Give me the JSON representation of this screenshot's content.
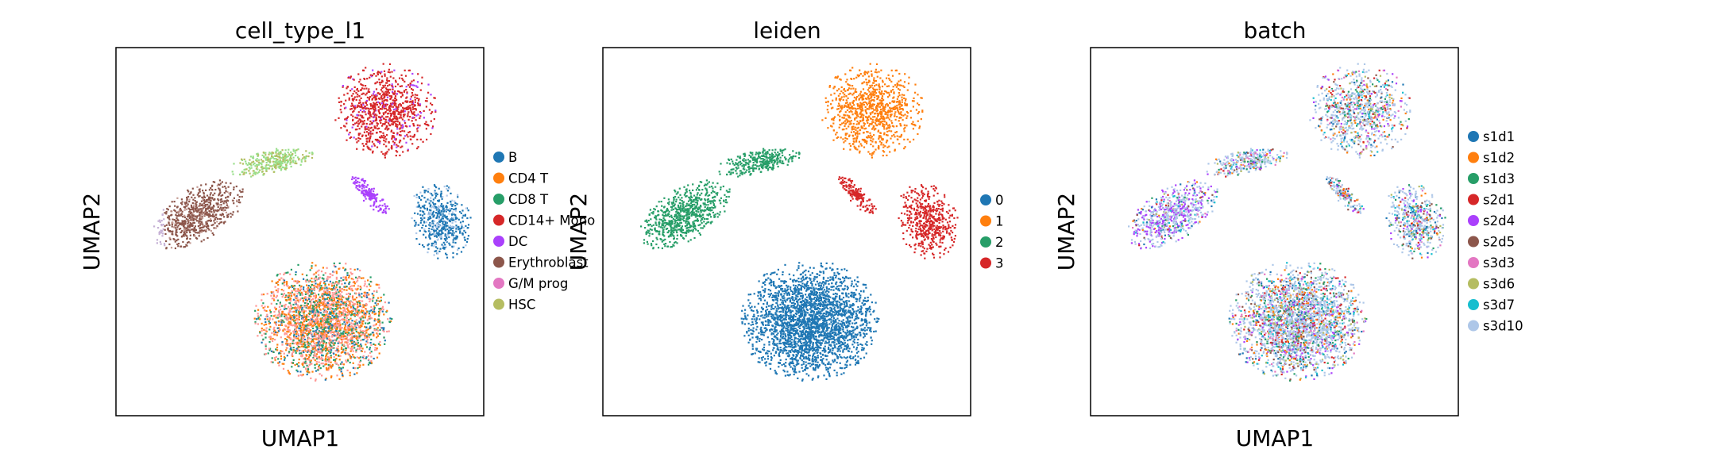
{
  "chart_data": [
    {
      "type": "scatter",
      "title": "cell_type_l1",
      "xlabel": "UMAP1",
      "ylabel": "UMAP2",
      "grid": false,
      "legend_position": "right",
      "legend": [
        {
          "name": "B",
          "color": "#1f77b4"
        },
        {
          "name": "CD4 T",
          "color": "#ff7f0e"
        },
        {
          "name": "CD8 T",
          "color": "#279e68"
        },
        {
          "name": "CD14+ Mono",
          "color": "#d62728"
        },
        {
          "name": "DC",
          "color": "#aa40fc"
        },
        {
          "name": "Erythroblast",
          "color": "#8c564b"
        },
        {
          "name": "G/M prog",
          "color": "#e377c2"
        },
        {
          "name": "HSC",
          "color": "#b5bd61"
        }
      ]
    },
    {
      "type": "scatter",
      "title": "leiden",
      "xlabel": "",
      "ylabel": "UMAP2",
      "grid": false,
      "legend_position": "right",
      "legend": [
        {
          "name": "0",
          "color": "#1f77b4"
        },
        {
          "name": "1",
          "color": "#ff7f0e"
        },
        {
          "name": "2",
          "color": "#279e68"
        },
        {
          "name": "3",
          "color": "#d62728"
        }
      ]
    },
    {
      "type": "scatter",
      "title": "batch",
      "xlabel": "UMAP1",
      "ylabel": "UMAP2",
      "grid": false,
      "legend_position": "right",
      "legend": [
        {
          "name": "s1d1",
          "color": "#1f77b4"
        },
        {
          "name": "s1d2",
          "color": "#ff7f0e"
        },
        {
          "name": "s1d3",
          "color": "#279e68"
        },
        {
          "name": "s2d1",
          "color": "#d62728"
        },
        {
          "name": "s2d4",
          "color": "#aa40fc"
        },
        {
          "name": "s2d5",
          "color": "#8c564b"
        },
        {
          "name": "s3d3",
          "color": "#e377c2"
        },
        {
          "name": "s3d6",
          "color": "#b5bd61"
        },
        {
          "name": "s3d7",
          "color": "#17becf"
        },
        {
          "name": "s3d10",
          "color": "#aec7e8"
        }
      ]
    }
  ]
}
